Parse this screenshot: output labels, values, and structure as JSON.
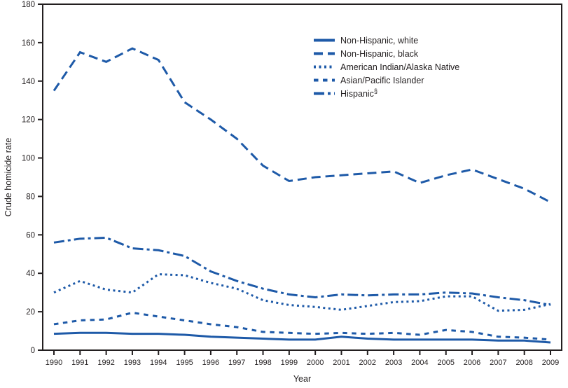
{
  "chart_data": {
    "type": "line",
    "title": "",
    "xlabel": "Year",
    "ylabel": "Crude homicide rate",
    "x": [
      1990,
      1991,
      1992,
      1993,
      1994,
      1995,
      1996,
      1997,
      1998,
      1999,
      2000,
      2001,
      2002,
      2003,
      2004,
      2005,
      2006,
      2007,
      2008,
      2009
    ],
    "ylim": [
      0,
      180
    ],
    "ytick_interval": 20,
    "grid": false,
    "frame": true,
    "legend_position": "upper-center",
    "line_color": "#1E5AA8",
    "axis_color": "#231F20",
    "series": [
      {
        "name": "Non-Hispanic, white",
        "style": "solid",
        "values": [
          8.5,
          9,
          9,
          8.5,
          8.5,
          8,
          7,
          6.5,
          6,
          5.5,
          5.5,
          7,
          6,
          5.5,
          5.5,
          5.5,
          5.5,
          5,
          5,
          4
        ]
      },
      {
        "name": "Non-Hispanic, black",
        "style": "long-dash",
        "values": [
          135,
          155,
          150,
          157,
          151,
          129,
          120,
          110,
          96,
          88,
          90,
          91,
          92,
          93,
          87,
          91,
          94,
          89,
          84,
          77
        ]
      },
      {
        "name": "American Indian/Alaska Native",
        "style": "dotted",
        "values": [
          30,
          36,
          31.5,
          30,
          39.5,
          39,
          35,
          32,
          26,
          23.5,
          22.5,
          21,
          23,
          25,
          25.5,
          28,
          28,
          20.5,
          21,
          24
        ]
      },
      {
        "name": "Asian/Pacific Islander",
        "style": "dash",
        "values": [
          13.5,
          15.5,
          16,
          19.5,
          17.5,
          15.5,
          13.5,
          12,
          9.5,
          9,
          8.5,
          9,
          8.5,
          9,
          8,
          10.5,
          9.5,
          7,
          6.5,
          5.5
        ]
      },
      {
        "name": "Hispanic",
        "superscript": "§",
        "style": "dash-dot",
        "values": [
          56,
          58,
          58.5,
          53,
          52,
          49,
          41,
          36,
          32,
          29,
          27.5,
          29,
          28.5,
          29,
          29,
          30,
          29.5,
          27.5,
          26,
          23.5
        ]
      }
    ]
  }
}
